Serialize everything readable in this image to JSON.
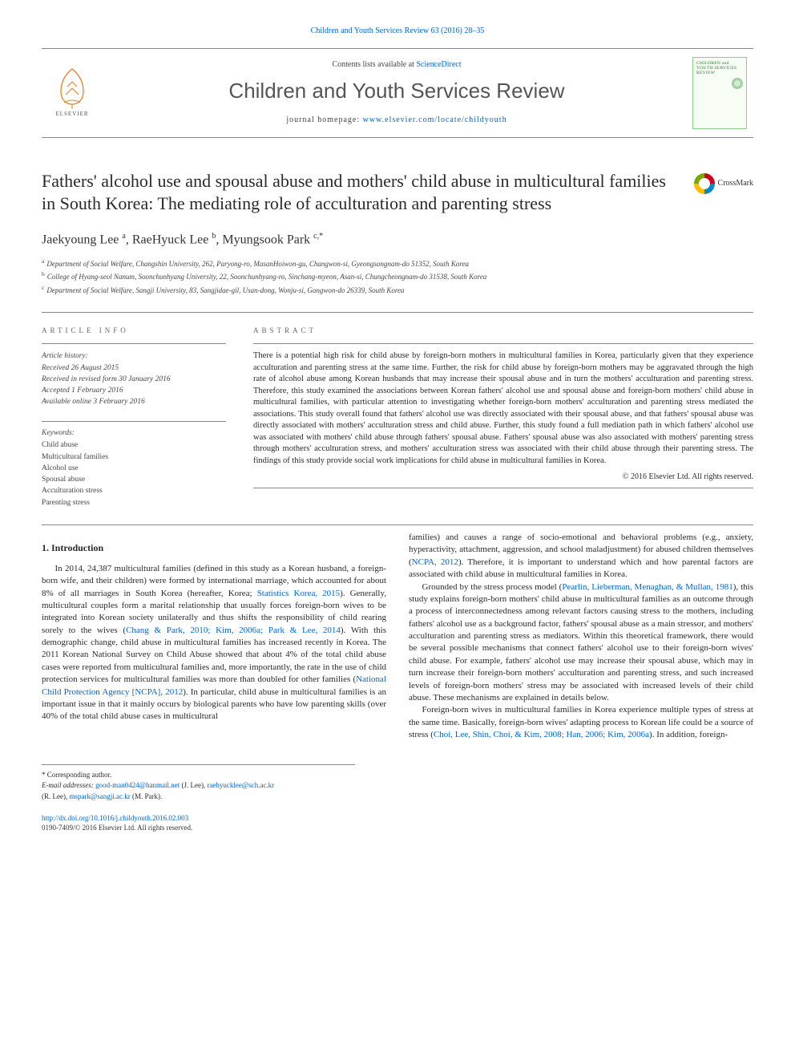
{
  "top_citation": "Children and Youth Services Review 63 (2016) 28–35",
  "banner": {
    "contents_prefix": "Contents lists available at ",
    "contents_link": "ScienceDirect",
    "journal_name": "Children and Youth Services Review",
    "homepage_prefix": "journal homepage: ",
    "homepage_link": "www.elsevier.com/locate/childyouth",
    "cover_title": "CHILDREN and YOUTH SERVICES REVIEW",
    "elsevier_text": "ELSEVIER"
  },
  "crossmark_label": "CrossMark",
  "title": "Fathers' alcohol use and spousal abuse and mothers' child abuse in multicultural families in South Korea: The mediating role of acculturation and parenting stress",
  "authors_html": "Jaekyoung Lee <sup>a</sup>, RaeHyuck Lee <sup>b</sup>, Myungsook Park <sup>c,*</sup>",
  "affiliations": [
    {
      "sup": "a",
      "text": "Department of Social Welfare, Changshin University, 262, Paryong-ro, MasanHoiwon-gu, Changwon-si, Gyeongsangnam-do 51352, South Korea"
    },
    {
      "sup": "b",
      "text": "College of Hyang-seol Nanum, Soonchunhyang University, 22, Soonchunhyang-ro, Sinchang-myeon, Asan-si, Chungcheongnam-do 31538, South Korea"
    },
    {
      "sup": "c",
      "text": "Department of Social Welfare, Sangji University, 83, Sangjidae-gil, Usan-dong, Wonju-si, Gangwon-do 26339, South Korea"
    }
  ],
  "article_info": {
    "header": "ARTICLE INFO",
    "history_label": "Article history:",
    "history": [
      "Received 26 August 2015",
      "Received in revised form 30 January 2016",
      "Accepted 1 February 2016",
      "Available online 3 February 2016"
    ],
    "keywords_label": "Keywords:",
    "keywords": [
      "Child abuse",
      "Multicultural families",
      "Alcohol use",
      "Spousal abuse",
      "Acculturation stress",
      "Parenting stress"
    ]
  },
  "abstract": {
    "header": "ABSTRACT",
    "text": "There is a potential high risk for child abuse by foreign-born mothers in multicultural families in Korea, particularly given that they experience acculturation and parenting stress at the same time. Further, the risk for child abuse by foreign-born mothers may be aggravated through the high rate of alcohol abuse among Korean husbands that may increase their spousal abuse and in turn the mothers' acculturation and parenting stress. Therefore, this study examined the associations between Korean fathers' alcohol use and spousal abuse and foreign-born mothers' child abuse in multicultural families, with particular attention to investigating whether foreign-born mothers' acculturation and parenting stress mediated the associations. This study overall found that fathers' alcohol use was directly associated with their spousal abuse, and that fathers' spousal abuse was directly associated with mothers' acculturation stress and child abuse. Further, this study found a full mediation path in which fathers' alcohol use was associated with mothers' child abuse through fathers' spousal abuse. Fathers' spousal abuse was also associated with mothers' parenting stress through mothers' acculturation stress, and mothers' acculturation stress was associated with their child abuse through their parenting stress. The findings of this study provide social work implications for child abuse in multicultural families in Korea.",
    "copyright": "© 2016 Elsevier Ltd. All rights reserved."
  },
  "body": {
    "heading": "1. Introduction",
    "p1_pre": "In 2014, 24,387 multicultural families (defined in this study as a Korean husband, a foreign-born wife, and their children) were formed by international marriage, which accounted for about 8% of all marriages in South Korea (hereafter, Korea; ",
    "p1_link1": "Statistics Korea, 2015",
    "p1_mid1": "). Generally, multicultural couples form a marital relationship that usually forces foreign-born wives to be integrated into Korean society unilaterally and thus shifts the responsibility of child rearing sorely to the wives (",
    "p1_link2": "Chang & Park, 2010; Kim, 2006a; Park & Lee, 2014",
    "p1_mid2": "). With this demographic change, child abuse in multicultural families has increased recently in Korea. The 2011 Korean National Survey on Child Abuse showed that about 4% of the total child abuse cases were reported from multicultural families and, more importantly, the rate in the use of child protection services for multicultural families was more than doubled for other families (",
    "p1_link3": "National Child Protection Agency [NCPA], 2012",
    "p1_mid3": "). In particular, child abuse in multicultural families is an important issue in that it mainly occurs by biological parents who have low parenting skills (over 40% of the total child abuse cases in multicultural",
    "p1b_pre": "families) and causes a range of socio-emotional and behavioral problems (e.g., anxiety, hyperactivity, attachment, aggression, and school maladjustment) for abused children themselves (",
    "p1b_link": "NCPA, 2012",
    "p1b_post": "). Therefore, it is important to understand which and how parental factors are associated with child abuse in multicultural families in Korea.",
    "p2_pre": "Grounded by the stress process model (",
    "p2_link": "Pearlin, Lieberman, Menaghan, & Mullan, 1981",
    "p2_post": "), this study explains foreign-born mothers' child abuse in multicultural families as an outcome through a process of interconnectedness among relevant factors causing stress to the mothers, including fathers' alcohol use as a background factor, fathers' spousal abuse as a main stressor, and mothers' acculturation and parenting stress as mediators. Within this theoretical framework, there would be several possible mechanisms that connect fathers' alcohol use to their foreign-born wives' child abuse. For example, fathers' alcohol use may increase their spousal abuse, which may in turn increase their foreign-born mothers' acculturation and parenting stress, and such increased levels of foreign-born mothers' stress may be associated with increased levels of their child abuse. These mechanisms are explained in details below.",
    "p3_pre": "Foreign-born wives in multicultural families in Korea experience multiple types of stress at the same time. Basically, foreign-born wives' adapting process to Korean life could be a source of stress (",
    "p3_link": "Choi, Lee, Shin, Choi, & Kim, 2008; Han, 2006; Kim, 2006a",
    "p3_post": "). In addition, foreign-"
  },
  "footnotes": {
    "corr": "* Corresponding author.",
    "emails_label": "E-mail addresses:",
    "e1": "good-man0424@hanmail.net",
    "e1_who": " (J. Lee), ",
    "e2": "raehyucklee@sch.ac.kr",
    "e2_who": " (R. Lee), ",
    "e3": "mspark@sangji.ac.kr",
    "e3_who": " (M. Park)."
  },
  "footer": {
    "doi": "http://dx.doi.org/10.1016/j.childyouth.2016.02.003",
    "rights": "0190-7409/© 2016 Elsevier Ltd. All rights reserved."
  },
  "colors": {
    "link": "#0066cc",
    "rule": "#888888",
    "text": "#2a2a2a",
    "muted": "#555555"
  }
}
